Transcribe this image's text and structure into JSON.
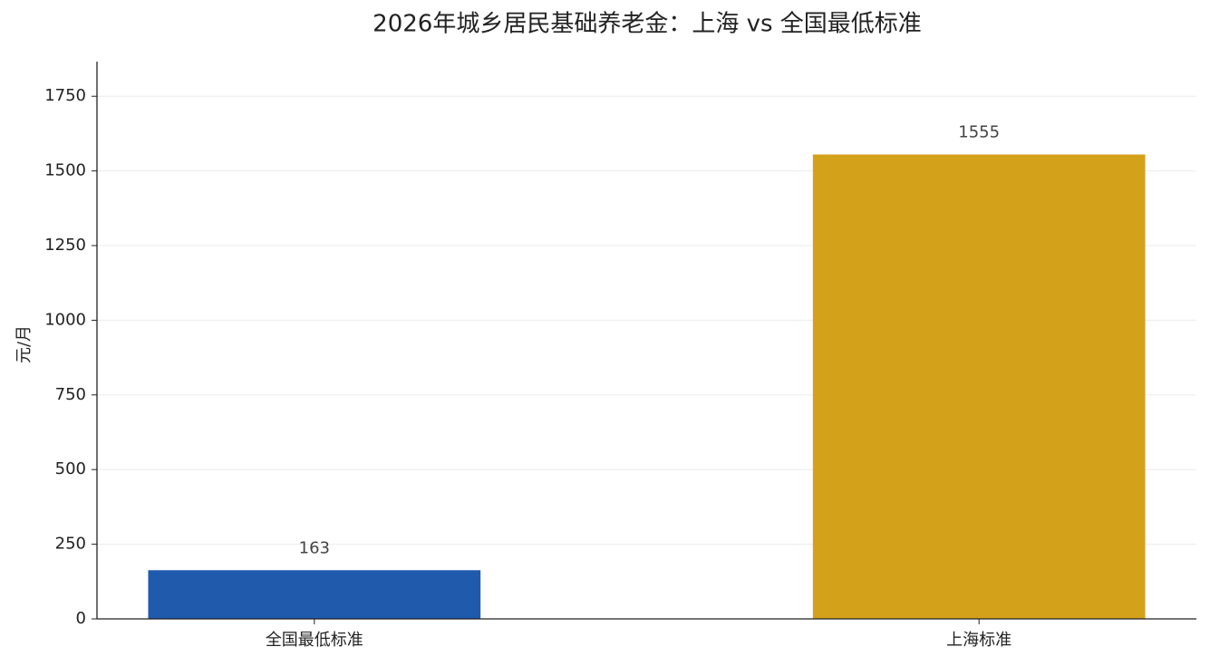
{
  "chart_data": {
    "type": "bar",
    "title": "2026年城乡居民基础养老金：上海 vs 全国最低标准",
    "y_label": "元/月",
    "categories": [
      "全国最低标准",
      "上海标准"
    ],
    "values": [
      163,
      1555
    ],
    "colors": [
      "#1f5aad",
      "#d4a11a"
    ],
    "ylim": [
      0,
      1866
    ],
    "yticks": [
      0,
      250,
      500,
      750,
      1000,
      1250,
      1500,
      1750
    ],
    "grid": true
  }
}
